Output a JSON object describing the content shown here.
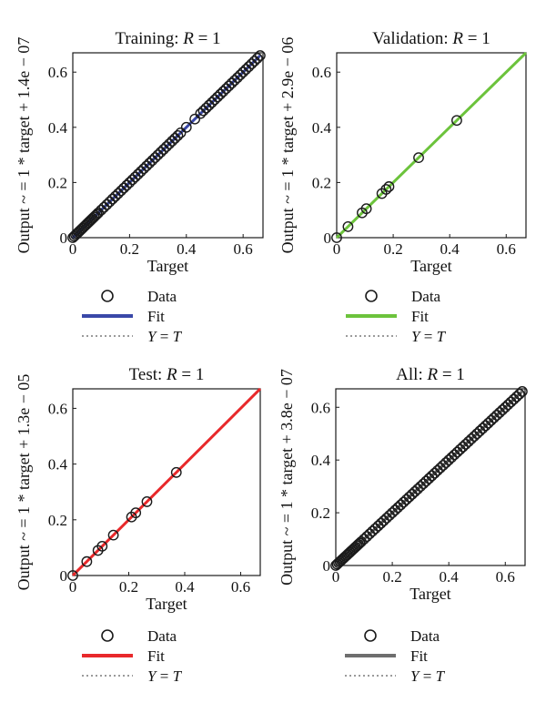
{
  "chart_data": [
    {
      "type": "scatter",
      "title_prefix": "Training: ",
      "title_r": "R",
      "title_suffix": " = 1",
      "xlabel": "Target",
      "ylabel": "Output ~ = 1 * target + 1.4e − 07",
      "xlim": [
        0,
        0.67
      ],
      "ylim": [
        0,
        0.67
      ],
      "xticks": [
        0,
        0.2,
        0.4,
        0.6
      ],
      "yticks": [
        0,
        0.2,
        0.4,
        0.6
      ],
      "fit_color": "#3a48a8",
      "fit": {
        "slope": 1,
        "intercept": 1.4e-07
      },
      "fit_range": [
        0,
        0.66
      ],
      "points": [
        0,
        0.005,
        0.01,
        0.015,
        0.02,
        0.025,
        0.03,
        0.035,
        0.04,
        0.045,
        0.05,
        0.055,
        0.06,
        0.065,
        0.07,
        0.075,
        0.08,
        0.085,
        0.09,
        0.1,
        0.11,
        0.12,
        0.13,
        0.14,
        0.15,
        0.16,
        0.17,
        0.18,
        0.19,
        0.2,
        0.21,
        0.22,
        0.23,
        0.24,
        0.25,
        0.26,
        0.27,
        0.28,
        0.29,
        0.3,
        0.31,
        0.32,
        0.33,
        0.34,
        0.35,
        0.36,
        0.37,
        0.38,
        0.4,
        0.43,
        0.45,
        0.46,
        0.47,
        0.48,
        0.49,
        0.5,
        0.51,
        0.52,
        0.53,
        0.54,
        0.55,
        0.56,
        0.57,
        0.58,
        0.59,
        0.6,
        0.61,
        0.62,
        0.63,
        0.64,
        0.65,
        0.66
      ],
      "legend": {
        "data": "Data",
        "fit": "Fit",
        "yt_y": "Y",
        "yt_eq": " = ",
        "yt_t": "T"
      }
    },
    {
      "type": "scatter",
      "title_prefix": "Validation: ",
      "title_r": "R",
      "title_suffix": " = 1",
      "xlabel": "Target",
      "ylabel": "Output ~ = 1 * target + 2.9e − 06",
      "xlim": [
        0,
        0.67
      ],
      "ylim": [
        0,
        0.67
      ],
      "xticks": [
        0,
        0.2,
        0.4,
        0.6
      ],
      "yticks": [
        0,
        0.2,
        0.4,
        0.6
      ],
      "fit_color": "#6cc33c",
      "fit": {
        "slope": 1,
        "intercept": 2.9e-06
      },
      "fit_range": [
        0,
        0.67
      ],
      "points": [
        0,
        0.04,
        0.09,
        0.105,
        0.16,
        0.175,
        0.185,
        0.29,
        0.425
      ],
      "legend": {
        "data": "Data",
        "fit": "Fit",
        "yt_y": "Y",
        "yt_eq": " = ",
        "yt_t": "T"
      }
    },
    {
      "type": "scatter",
      "title_prefix": "Test: ",
      "title_r": "R",
      "title_suffix": " = 1",
      "xlabel": "Target",
      "ylabel": "Output ~ = 1 * target + 1.3e − 05",
      "xlim": [
        0,
        0.67
      ],
      "ylim": [
        0,
        0.67
      ],
      "xticks": [
        0,
        0.2,
        0.4,
        0.6
      ],
      "yticks": [
        0,
        0.2,
        0.4,
        0.6
      ],
      "fit_color": "#e8292b",
      "fit": {
        "slope": 1,
        "intercept": 1.3e-05
      },
      "fit_range": [
        0,
        0.67
      ],
      "points": [
        0,
        0.05,
        0.09,
        0.105,
        0.145,
        0.21,
        0.225,
        0.265,
        0.37
      ],
      "legend": {
        "data": "Data",
        "fit": "Fit",
        "yt_y": "Y",
        "yt_eq": " = ",
        "yt_t": "T"
      }
    },
    {
      "type": "scatter",
      "title_prefix": "All: ",
      "title_r": "R",
      "title_suffix": " = 1",
      "xlabel": "Target",
      "ylabel": "Output ~ = 1 * target + 3.8e − 07",
      "xlim": [
        0,
        0.67
      ],
      "ylim": [
        0,
        0.67
      ],
      "xticks": [
        0,
        0.2,
        0.4,
        0.6
      ],
      "yticks": [
        0,
        0.2,
        0.4,
        0.6
      ],
      "fit_color": "#6e6e6e",
      "fit": {
        "slope": 1,
        "intercept": 3.8e-07
      },
      "fit_range": [
        0,
        0.66
      ],
      "points": [
        0,
        0.005,
        0.01,
        0.015,
        0.02,
        0.025,
        0.03,
        0.035,
        0.04,
        0.045,
        0.05,
        0.055,
        0.06,
        0.065,
        0.07,
        0.075,
        0.08,
        0.085,
        0.09,
        0.1,
        0.11,
        0.12,
        0.13,
        0.14,
        0.15,
        0.16,
        0.17,
        0.18,
        0.19,
        0.2,
        0.21,
        0.22,
        0.23,
        0.24,
        0.25,
        0.26,
        0.27,
        0.28,
        0.29,
        0.3,
        0.31,
        0.32,
        0.33,
        0.34,
        0.35,
        0.36,
        0.37,
        0.38,
        0.39,
        0.4,
        0.41,
        0.42,
        0.43,
        0.44,
        0.45,
        0.46,
        0.47,
        0.48,
        0.49,
        0.5,
        0.51,
        0.52,
        0.53,
        0.54,
        0.55,
        0.56,
        0.57,
        0.58,
        0.59,
        0.6,
        0.61,
        0.62,
        0.63,
        0.64,
        0.65,
        0.66
      ],
      "legend": {
        "data": "Data",
        "fit": "Fit",
        "yt_y": "Y",
        "yt_eq": " = ",
        "yt_t": "T"
      }
    }
  ],
  "colors": {
    "axis": "#1a1a1a",
    "marker": "#1a1a1a",
    "identity_line": "#7a7a7a"
  }
}
